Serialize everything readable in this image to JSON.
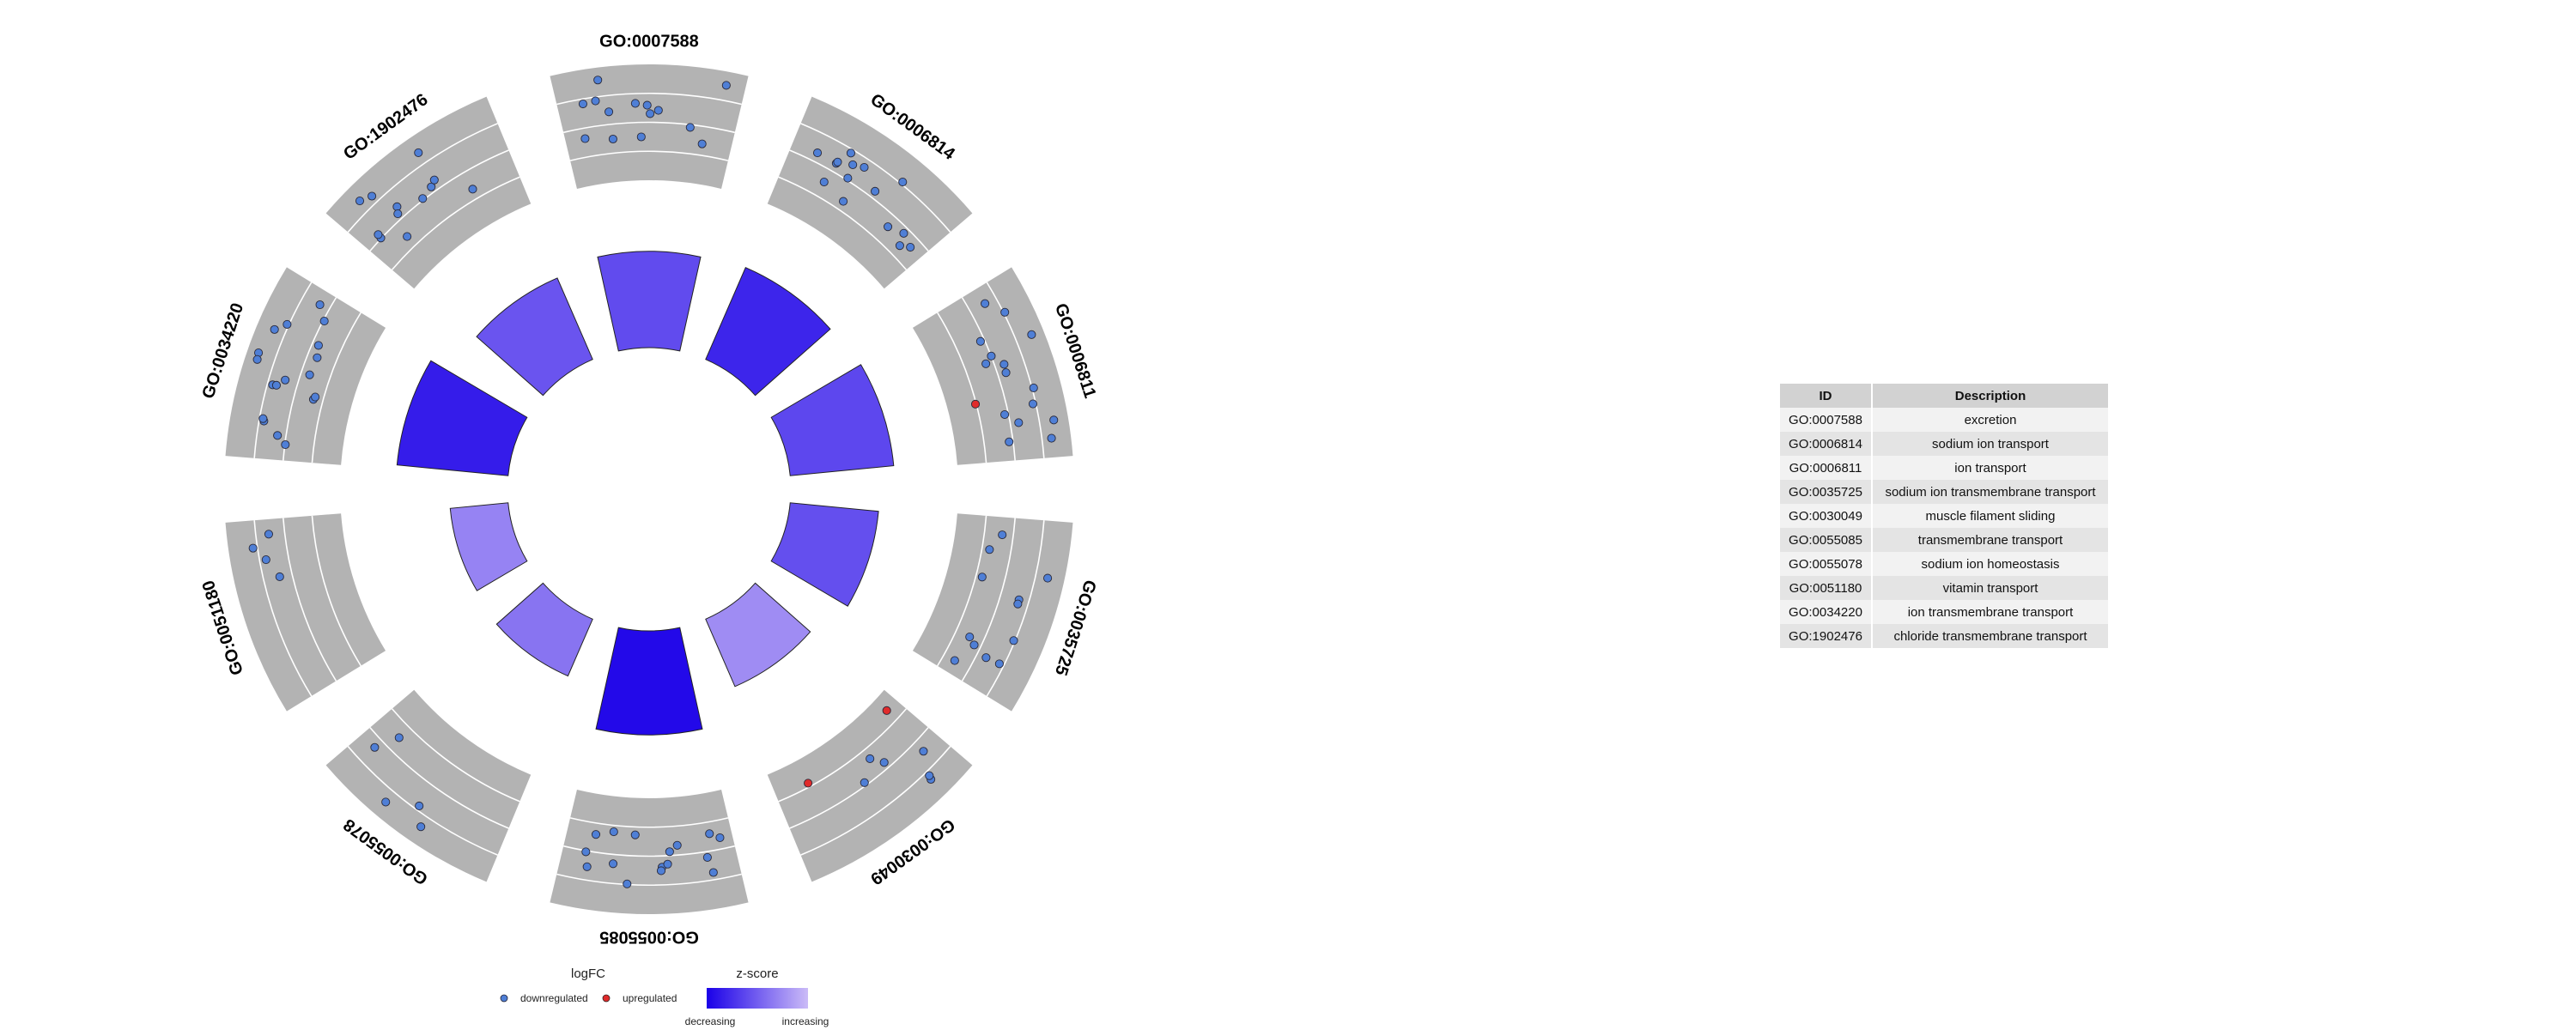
{
  "chart_data": {
    "type": "circular-enrichment",
    "outer_track": "logFC",
    "inner_track": "z-score",
    "sectors": [
      {
        "id": "GO:0007588",
        "zscore": 0.4,
        "count": 14
      },
      {
        "id": "GO:0006814",
        "zscore": 0.2,
        "count": 15
      },
      {
        "id": "GO:0006811",
        "zscore": 0.38,
        "count": 16
      },
      {
        "id": "GO:0035725",
        "zscore": 0.42,
        "count": 12
      },
      {
        "id": "GO:0030049",
        "zscore": 0.75,
        "count": 8
      },
      {
        "id": "GO:0055085",
        "zscore": 0.05,
        "count": 16
      },
      {
        "id": "GO:0055078",
        "zscore": 0.62,
        "count": 5
      },
      {
        "id": "GO:0051180",
        "zscore": 0.7,
        "count": 4
      },
      {
        "id": "GO:0034220",
        "zscore": 0.15,
        "count": 18
      },
      {
        "id": "GO:1902476",
        "zscore": 0.45,
        "count": 12
      }
    ],
    "legend": {
      "logfc_title": "logFC",
      "downregulated": "downregulated",
      "upregulated": "upregulated",
      "zscore_title": "z-score",
      "decreasing": "decreasing",
      "increasing": "increasing"
    },
    "colors": {
      "sector_bg": "#b3b3b3",
      "down_point": "#4f7fd6",
      "up_point": "#e02b2b",
      "zscore_low": "#1a00e8",
      "zscore_high": "#cbbbf7"
    }
  },
  "table": {
    "headers": {
      "id": "ID",
      "description": "Description"
    },
    "rows": [
      {
        "id": "GO:0007588",
        "description": "excretion"
      },
      {
        "id": "GO:0006814",
        "description": "sodium ion transport"
      },
      {
        "id": "GO:0006811",
        "description": "ion transport"
      },
      {
        "id": "GO:0035725",
        "description": "sodium ion transmembrane transport"
      },
      {
        "id": "GO:0030049",
        "description": "muscle filament sliding"
      },
      {
        "id": "GO:0055085",
        "description": "transmembrane transport"
      },
      {
        "id": "GO:0055078",
        "description": "sodium ion homeostasis"
      },
      {
        "id": "GO:0051180",
        "description": "vitamin transport"
      },
      {
        "id": "GO:0034220",
        "description": "ion transmembrane transport"
      },
      {
        "id": "GO:1902476",
        "description": "chloride transmembrane transport"
      }
    ]
  }
}
